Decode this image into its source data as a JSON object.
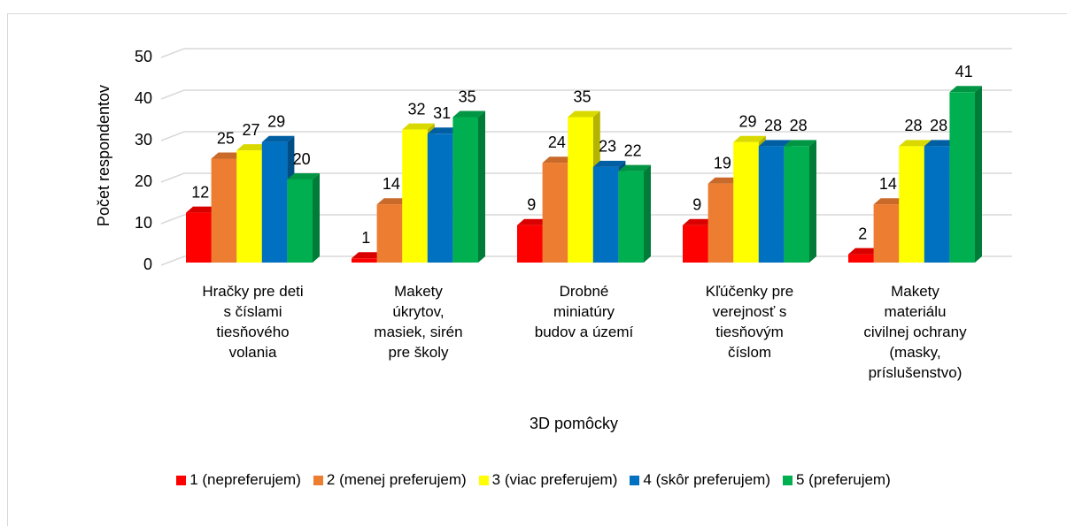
{
  "chart_data": {
    "type": "bar3d",
    "x_label": "3D pomôcky",
    "y_label": "Počet respondentov",
    "categories": [
      "Hračky pre deti\ns číslami\ntiesňového\nvolania",
      "Makety\núkrytov,\nmasiek, sirén\npre školy",
      "Drobné\nminiatúry\nbudov a území",
      "Kľúčenky pre\nverejnosť s\ntiesňovým\nčíslom",
      "Makety\nmateriálu\ncivilnej ochrany\n(masky,\npríslušenstvo)"
    ],
    "series": [
      {
        "name": "1 (nepreferujem)",
        "color": "#ff0000",
        "values": [
          12,
          1,
          9,
          9,
          2
        ]
      },
      {
        "name": "2 (menej preferujem)",
        "color": "#ed7d31",
        "values": [
          25,
          14,
          24,
          19,
          14
        ]
      },
      {
        "name": "3 (viac preferujem)",
        "color": "#ffff00",
        "values": [
          27,
          32,
          35,
          29,
          28
        ]
      },
      {
        "name": "4 (skôr preferujem)",
        "color": "#0070c0",
        "values": [
          29,
          31,
          23,
          28,
          28
        ]
      },
      {
        "name": "5 (preferujem)",
        "color": "#00b050",
        "values": [
          20,
          35,
          22,
          28,
          41
        ]
      }
    ],
    "ylim": [
      0,
      50
    ],
    "yticks": [
      0,
      10,
      20,
      30,
      40,
      50
    ],
    "grid": true,
    "legend": "bottom"
  }
}
